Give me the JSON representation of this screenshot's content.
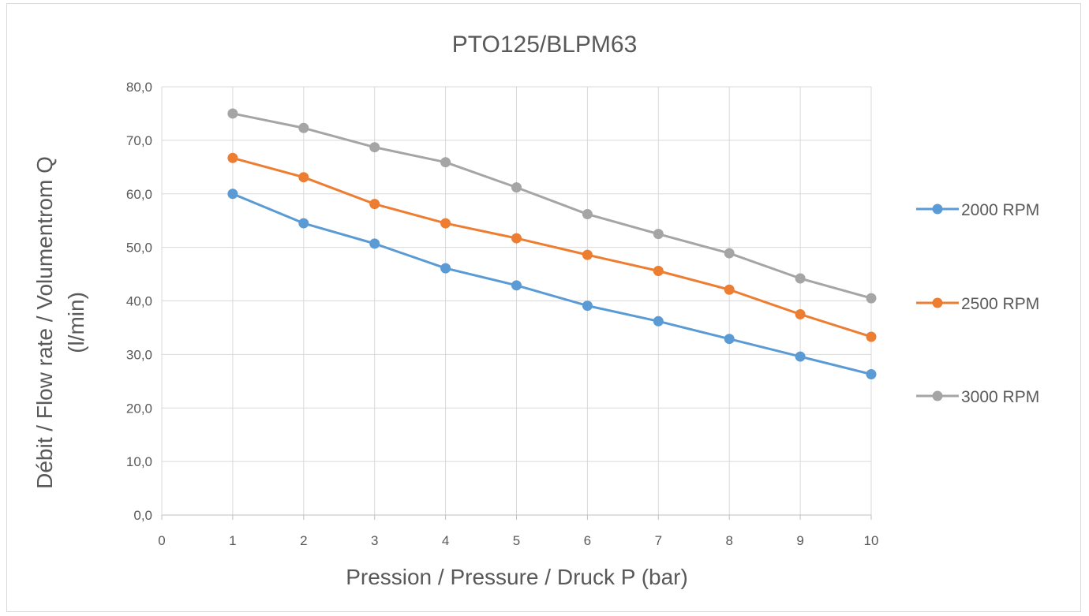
{
  "chart_data": {
    "type": "line",
    "title": "PTO125/BLPM63",
    "xlabel": "Pression / Pressure / Druck P (bar)",
    "ylabel_line1": "Débit / Flow rate / Volumentrom Q",
    "ylabel_line2": "(l/min)",
    "xlim": [
      0,
      10
    ],
    "ylim": [
      0,
      80
    ],
    "x_ticks": [
      "0",
      "1",
      "2",
      "3",
      "4",
      "5",
      "6",
      "7",
      "8",
      "9",
      "10"
    ],
    "y_ticks": [
      "0,0",
      "10,0",
      "20,0",
      "30,0",
      "40,0",
      "50,0",
      "60,0",
      "70,0",
      "80,0"
    ],
    "grid": true,
    "legend_position": "right",
    "x": [
      1,
      2,
      3,
      4,
      5,
      6,
      7,
      8,
      9,
      10
    ],
    "series": [
      {
        "name": "2000 RPM",
        "color": "#5b9bd5",
        "values": [
          60.0,
          54.5,
          50.7,
          46.1,
          42.9,
          39.1,
          36.2,
          32.9,
          29.6,
          26.3
        ]
      },
      {
        "name": "2500 RPM",
        "color": "#ed7d31",
        "values": [
          66.7,
          63.1,
          58.1,
          54.5,
          51.7,
          48.6,
          45.6,
          42.1,
          37.5,
          33.3
        ]
      },
      {
        "name": "3000 RPM",
        "color": "#a5a5a5",
        "values": [
          75.0,
          72.3,
          68.7,
          65.9,
          61.2,
          56.2,
          52.5,
          48.9,
          44.2,
          40.5
        ]
      }
    ]
  }
}
